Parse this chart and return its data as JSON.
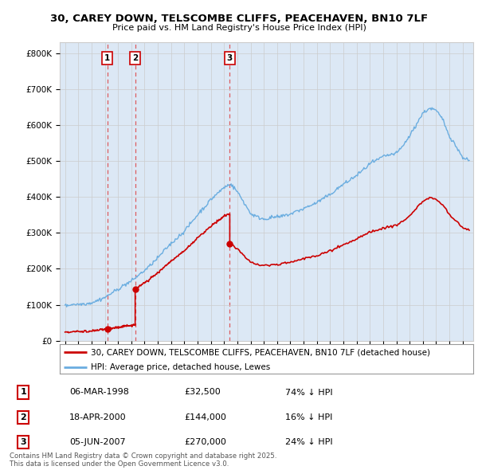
{
  "title_line1": "30, CAREY DOWN, TELSCOMBE CLIFFS, PEACEHAVEN, BN10 7LF",
  "title_line2": "Price paid vs. HM Land Registry's House Price Index (HPI)",
  "yticks": [
    0,
    100000,
    200000,
    300000,
    400000,
    500000,
    600000,
    700000,
    800000
  ],
  "ytick_labels": [
    "£0",
    "£100K",
    "£200K",
    "£300K",
    "£400K",
    "£500K",
    "£600K",
    "£700K",
    "£800K"
  ],
  "ylim": [
    0,
    830000
  ],
  "xlim_start": 1994.6,
  "xlim_end": 2025.8,
  "hpi_color": "#6aade0",
  "price_color": "#cc0000",
  "dashed_line_color": "#dd4444",
  "grid_color": "#cccccc",
  "bg_color": "#e8f0f8",
  "plot_bg": "#dce8f5",
  "legend_box_color": "#cc0000",
  "sale1_year": 1998.18,
  "sale1_price": 32500,
  "sale1_label": "1",
  "sale1_date": "06-MAR-1998",
  "sale1_price_str": "£32,500",
  "sale1_hpi_pct": "74% ↓ HPI",
  "sale2_year": 2000.29,
  "sale2_price": 144000,
  "sale2_label": "2",
  "sale2_date": "18-APR-2000",
  "sale2_price_str": "£144,000",
  "sale2_hpi_pct": "16% ↓ HPI",
  "sale3_year": 2007.43,
  "sale3_price": 270000,
  "sale3_label": "3",
  "sale3_date": "05-JUN-2007",
  "sale3_price_str": "£270,000",
  "sale3_hpi_pct": "24% ↓ HPI",
  "legend_line1": "30, CAREY DOWN, TELSCOMBE CLIFFS, PEACEHAVEN, BN10 7LF (detached house)",
  "legend_line2": "HPI: Average price, detached house, Lewes",
  "footer": "Contains HM Land Registry data © Crown copyright and database right 2025.\nThis data is licensed under the Open Government Licence v3.0."
}
